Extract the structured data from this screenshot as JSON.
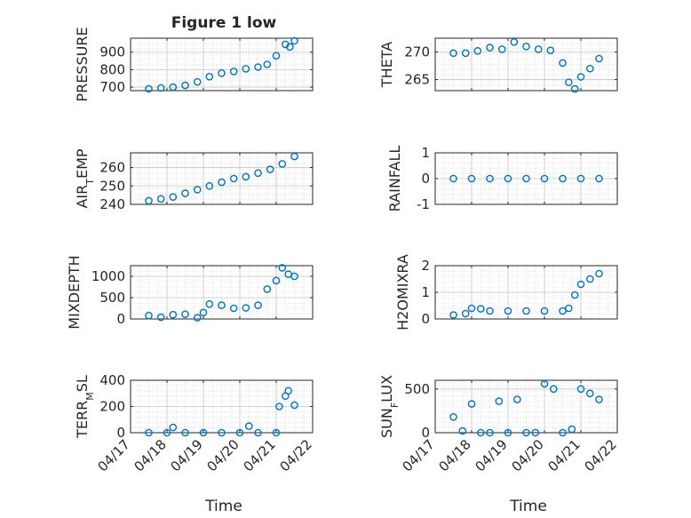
{
  "figure": {
    "title": "Figure 1 low",
    "xlabel": "Time"
  },
  "x_tick_labels": [
    "04/17",
    "04/18",
    "04/19",
    "04/20",
    "04/21",
    "04/22"
  ],
  "marker_color": "#0072BD",
  "chart_data": [
    {
      "type": "scatter",
      "ylabel": "PRESSURE",
      "ylim": [
        680,
        980
      ],
      "yticks": [
        700,
        800,
        900
      ],
      "grid": true,
      "x": [
        "04/17 12:00",
        "04/17 20:00",
        "04/18 04:00",
        "04/18 12:00",
        "04/18 20:00",
        "04/19 04:00",
        "04/19 12:00",
        "04/19 20:00",
        "04/20 04:00",
        "04/20 12:00",
        "04/20 18:00",
        "04/21 00:00",
        "04/21 06:00",
        "04/21 09:00",
        "04/21 12:00"
      ],
      "y": [
        690,
        695,
        700,
        710,
        730,
        760,
        780,
        790,
        805,
        815,
        830,
        880,
        945,
        930,
        965
      ]
    },
    {
      "type": "scatter",
      "ylabel": "THETA",
      "ylim": [
        263,
        272.5
      ],
      "yticks": [
        265,
        270
      ],
      "grid": true,
      "x": [
        "04/17 12:00",
        "04/17 20:00",
        "04/18 04:00",
        "04/18 12:00",
        "04/18 20:00",
        "04/19 04:00",
        "04/19 12:00",
        "04/19 20:00",
        "04/20 04:00",
        "04/20 12:00",
        "04/20 16:00",
        "04/20 20:00",
        "04/21 00:00",
        "04/21 06:00",
        "04/21 12:00"
      ],
      "y": [
        269.8,
        269.8,
        270.2,
        270.8,
        270.5,
        271.8,
        271.0,
        270.5,
        270.3,
        268.0,
        264.5,
        263.3,
        265.5,
        267.0,
        268.8
      ]
    },
    {
      "type": "scatter",
      "ylabel": "AIR_TEMP",
      "ylim": [
        240,
        268
      ],
      "yticks": [
        240,
        250,
        260
      ],
      "grid": true,
      "x": [
        "04/17 12:00",
        "04/17 20:00",
        "04/18 04:00",
        "04/18 12:00",
        "04/18 20:00",
        "04/19 04:00",
        "04/19 12:00",
        "04/19 20:00",
        "04/20 04:00",
        "04/20 12:00",
        "04/20 20:00",
        "04/21 04:00",
        "04/21 12:00"
      ],
      "y": [
        242,
        243,
        244,
        246,
        248,
        250,
        252,
        254,
        255,
        257,
        259,
        262,
        266
      ]
    },
    {
      "type": "scatter",
      "ylabel": "RAINFALL",
      "ylim": [
        -1,
        1
      ],
      "yticks": [
        -1,
        0,
        1
      ],
      "grid": true,
      "x": [
        "04/17 12:00",
        "04/18 00:00",
        "04/18 12:00",
        "04/19 00:00",
        "04/19 12:00",
        "04/20 00:00",
        "04/20 12:00",
        "04/21 00:00",
        "04/21 12:00"
      ],
      "y": [
        0,
        0,
        0,
        0,
        0,
        0,
        0,
        0,
        0
      ]
    },
    {
      "type": "scatter",
      "ylabel": "MIXDEPTH",
      "ylim": [
        0,
        1250
      ],
      "yticks": [
        0,
        500,
        1000
      ],
      "grid": true,
      "x": [
        "04/17 12:00",
        "04/17 20:00",
        "04/18 04:00",
        "04/18 12:00",
        "04/18 20:00",
        "04/19 00:00",
        "04/19 04:00",
        "04/19 12:00",
        "04/19 20:00",
        "04/20 04:00",
        "04/20 12:00",
        "04/20 18:00",
        "04/21 00:00",
        "04/21 04:00",
        "04/21 08:00",
        "04/21 12:00"
      ],
      "y": [
        80,
        40,
        100,
        110,
        30,
        150,
        350,
        320,
        250,
        260,
        320,
        700,
        900,
        1200,
        1050,
        1000
      ]
    },
    {
      "type": "scatter",
      "ylabel": "H2OMIXRA",
      "ylim": [
        0,
        2
      ],
      "yticks": [
        0,
        1,
        2
      ],
      "grid": true,
      "x": [
        "04/17 12:00",
        "04/17 20:00",
        "04/18 00:00",
        "04/18 06:00",
        "04/18 12:00",
        "04/19 00:00",
        "04/19 12:00",
        "04/20 00:00",
        "04/20 12:00",
        "04/20 16:00",
        "04/20 20:00",
        "04/21 00:00",
        "04/21 06:00",
        "04/21 12:00"
      ],
      "y": [
        0.15,
        0.2,
        0.4,
        0.38,
        0.3,
        0.3,
        0.3,
        0.3,
        0.3,
        0.4,
        0.9,
        1.3,
        1.5,
        1.7
      ]
    },
    {
      "type": "scatter",
      "ylabel": "TERR_MSL",
      "ylim": [
        0,
        400
      ],
      "yticks": [
        0,
        200,
        400
      ],
      "grid": true,
      "x": [
        "04/17 12:00",
        "04/18 00:00",
        "04/18 04:00",
        "04/18 12:00",
        "04/19 00:00",
        "04/19 12:00",
        "04/20 00:00",
        "04/20 06:00",
        "04/20 12:00",
        "04/21 00:00",
        "04/21 02:00",
        "04/21 06:00",
        "04/21 08:00",
        "04/21 12:00"
      ],
      "y": [
        0,
        0,
        40,
        0,
        0,
        0,
        0,
        50,
        0,
        0,
        200,
        280,
        320,
        210
      ]
    },
    {
      "type": "scatter",
      "ylabel": "SUN_FLUX",
      "ylim": [
        0,
        600
      ],
      "yticks": [
        0,
        500
      ],
      "grid": true,
      "x": [
        "04/17 12:00",
        "04/17 18:00",
        "04/18 00:00",
        "04/18 06:00",
        "04/18 12:00",
        "04/18 18:00",
        "04/19 00:00",
        "04/19 06:00",
        "04/19 12:00",
        "04/19 18:00",
        "04/20 00:00",
        "04/20 06:00",
        "04/20 12:00",
        "04/20 18:00",
        "04/21 00:00",
        "04/21 06:00",
        "04/21 12:00"
      ],
      "y": [
        180,
        20,
        330,
        0,
        0,
        360,
        0,
        380,
        0,
        0,
        560,
        500,
        0,
        40,
        500,
        450,
        380
      ]
    }
  ]
}
